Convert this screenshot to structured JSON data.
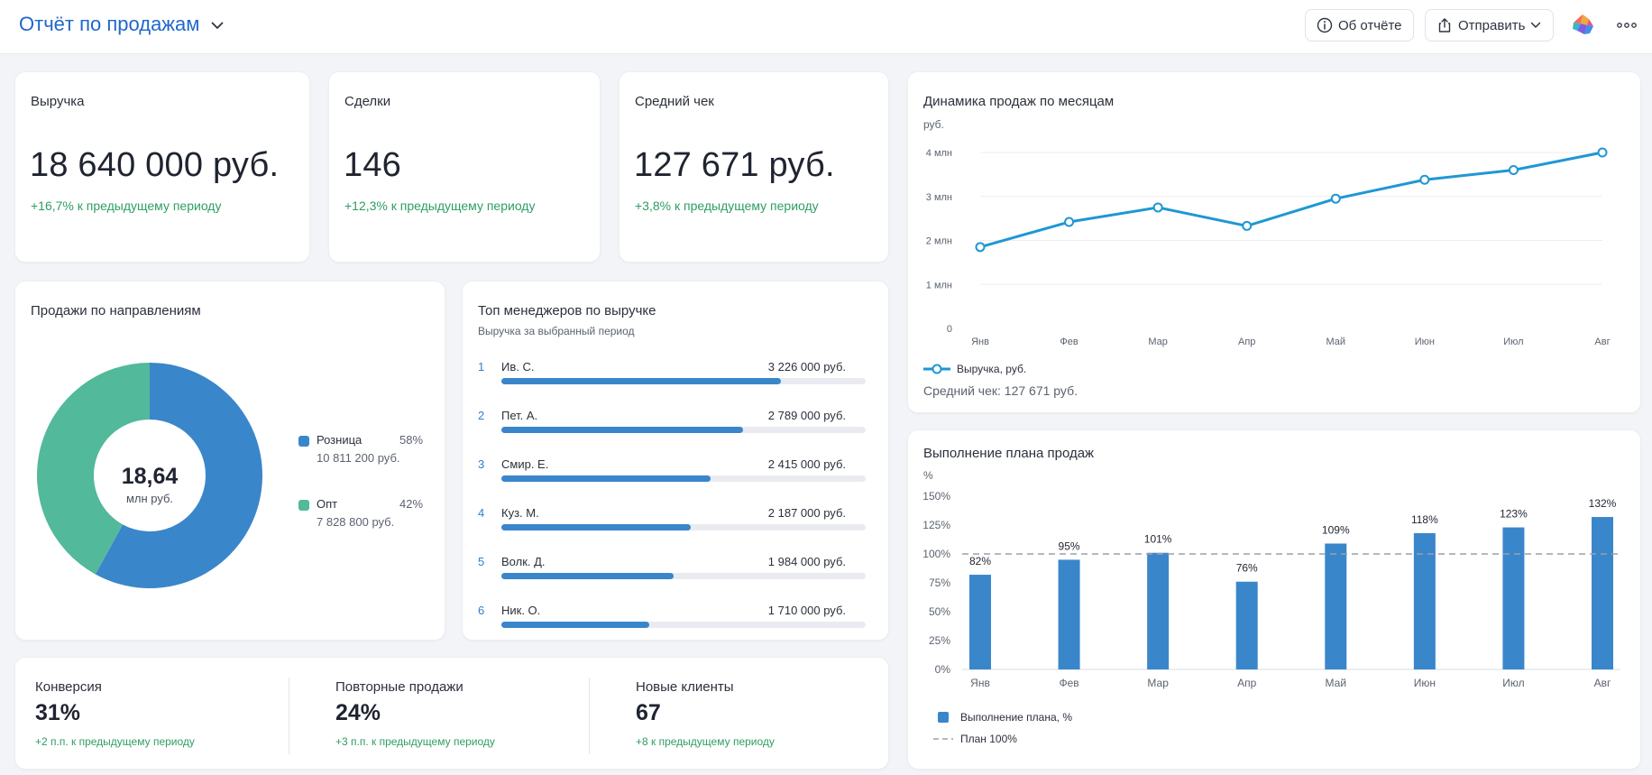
{
  "header": {
    "title": "Отчёт по продажам",
    "about_label": "Об отчёте",
    "send_label": "Отправить"
  },
  "kpis": [
    {
      "label": "Выручка",
      "value": "18 640 000 руб.",
      "delta": "+16,7% к предыдущему периоду"
    },
    {
      "label": "Сделки",
      "value": "146",
      "delta": "+12,3% к предыдущему периоду"
    },
    {
      "label": "Средний чек",
      "value": "127 671 руб.",
      "delta": "+3,8% к предыдущему периоду"
    }
  ],
  "donut": {
    "title": "Продажи по направлениям",
    "center_value": "18,64",
    "center_unit": "млн руб.",
    "segments": [
      {
        "name": "Розница",
        "pct": "58%",
        "fraction": 0.58,
        "amount": "10 811 200 руб.",
        "color": "#3a86cb"
      },
      {
        "name": "Опт",
        "pct": "42%",
        "fraction": 0.42,
        "amount": "7 828 800 руб.",
        "color": "#52b99a"
      }
    ]
  },
  "managers": {
    "title": "Топ менеджеров по выручке",
    "subtitle": "Выручка за выбранный период",
    "max_value": 4200000,
    "rows": [
      {
        "rank": "1",
        "name": "Ив. С.",
        "amount": "3 226 000 руб.",
        "value": 3226000
      },
      {
        "rank": "2",
        "name": "Пет. А.",
        "amount": "2 789 000 руб.",
        "value": 2789000
      },
      {
        "rank": "3",
        "name": "Смир. Е.",
        "amount": "2 415 000 руб.",
        "value": 2415000
      },
      {
        "rank": "4",
        "name": "Куз. М.",
        "amount": "2 187 000 руб.",
        "value": 2187000
      },
      {
        "rank": "5",
        "name": "Волк. Д.",
        "amount": "1 984 000 руб.",
        "value": 1984000
      },
      {
        "rank": "6",
        "name": "Ник. О.",
        "amount": "1 710 000 руб.",
        "value": 1710000
      }
    ]
  },
  "mini_kpis": [
    {
      "label": "Конверсия",
      "value": "31%",
      "delta": "+2 п.п. к предыдущему периоду"
    },
    {
      "label": "Повторные продажи",
      "value": "24%",
      "delta": "+3 п.п. к предыдущему периоду"
    },
    {
      "label": "Новые клиенты",
      "value": "67",
      "delta": "+8 к предыдущему периоду"
    }
  ],
  "line_chart": {
    "avg_check_text": "Средний чек: 127 671 руб."
  },
  "bar_chart": {},
  "chart_data": [
    {
      "type": "line",
      "title": "Динамика продаж по месяцам",
      "ylabel": "руб.",
      "categories": [
        "Янв",
        "Фев",
        "Мар",
        "Апр",
        "Май",
        "Июн",
        "Июл",
        "Авг"
      ],
      "series": [
        {
          "name": "Выручка, руб.",
          "values": [
            1850000,
            2420000,
            2750000,
            2330000,
            2950000,
            3380000,
            3600000,
            4000000
          ],
          "color": "#1f97d4"
        }
      ],
      "ylim": [
        0,
        4000000
      ],
      "yticks": [
        "0",
        "1 млн",
        "2 млн",
        "3 млн",
        "4 млн"
      ],
      "grid": true,
      "legend": "bottom-left"
    },
    {
      "type": "bar",
      "title": "Выполнение плана продаж",
      "ylabel": "%",
      "categories": [
        "Янв",
        "Фев",
        "Мар",
        "Апр",
        "Май",
        "Июн",
        "Июл",
        "Авг"
      ],
      "series": [
        {
          "name": "Выполнение плана, %",
          "values": [
            82,
            95,
            101,
            76,
            109,
            118,
            123,
            132
          ],
          "color": "#3a86cb"
        }
      ],
      "data_labels": [
        "82%",
        "95%",
        "101%",
        "76%",
        "109%",
        "118%",
        "123%",
        "132%"
      ],
      "reference_line": {
        "name": "План 100%",
        "value": 100
      },
      "ylim": [
        0,
        150
      ],
      "yticks": [
        "0%",
        "25%",
        "50%",
        "75%",
        "100%",
        "125%",
        "150%"
      ],
      "grid": false,
      "legend": "bottom-left"
    }
  ]
}
